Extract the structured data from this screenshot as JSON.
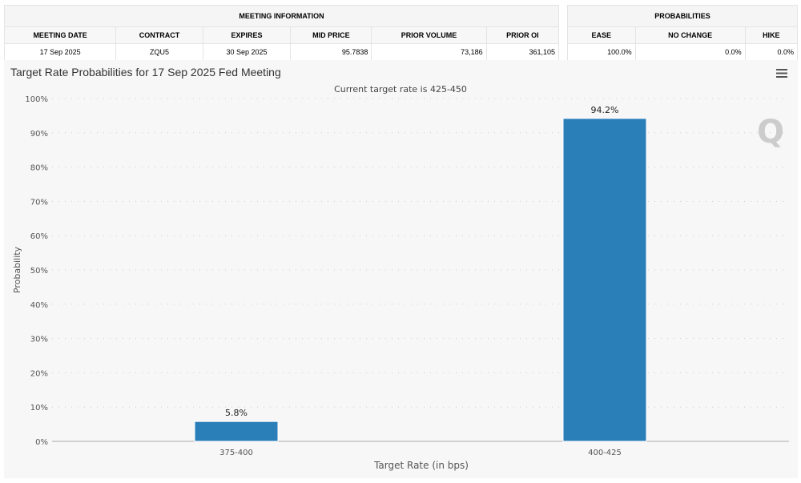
{
  "meeting_info": {
    "title": "MEETING INFORMATION",
    "headers": [
      "MEETING DATE",
      "CONTRACT",
      "EXPIRES",
      "MID PRICE",
      "PRIOR VOLUME",
      "PRIOR OI"
    ],
    "values": [
      "17 Sep 2025",
      "ZQU5",
      "30 Sep 2025",
      "95.7838",
      "73,186",
      "361,105"
    ]
  },
  "probabilities": {
    "title": "PROBABILITIES",
    "headers": [
      "EASE",
      "NO CHANGE",
      "HIKE"
    ],
    "values": [
      "100.0%",
      "0.0%",
      "0.0%"
    ]
  },
  "menu_icon": "hamburger-menu-icon",
  "chart_data": {
    "type": "bar",
    "title": "Target Rate Probabilities for 17 Sep 2025 Fed Meeting",
    "subtitle": "Current target rate is 425-450",
    "xlabel": "Target Rate (in bps)",
    "ylabel": "Probability",
    "categories": [
      "375-400",
      "400-425"
    ],
    "values": [
      5.8,
      94.2
    ],
    "data_labels": [
      "5.8%",
      "94.2%"
    ],
    "ylim": [
      0,
      100
    ],
    "yticks": [
      "0%",
      "10%",
      "20%",
      "30%",
      "40%",
      "50%",
      "60%",
      "70%",
      "80%",
      "90%",
      "100%"
    ],
    "grid": true,
    "color": "#2b7fb9"
  }
}
